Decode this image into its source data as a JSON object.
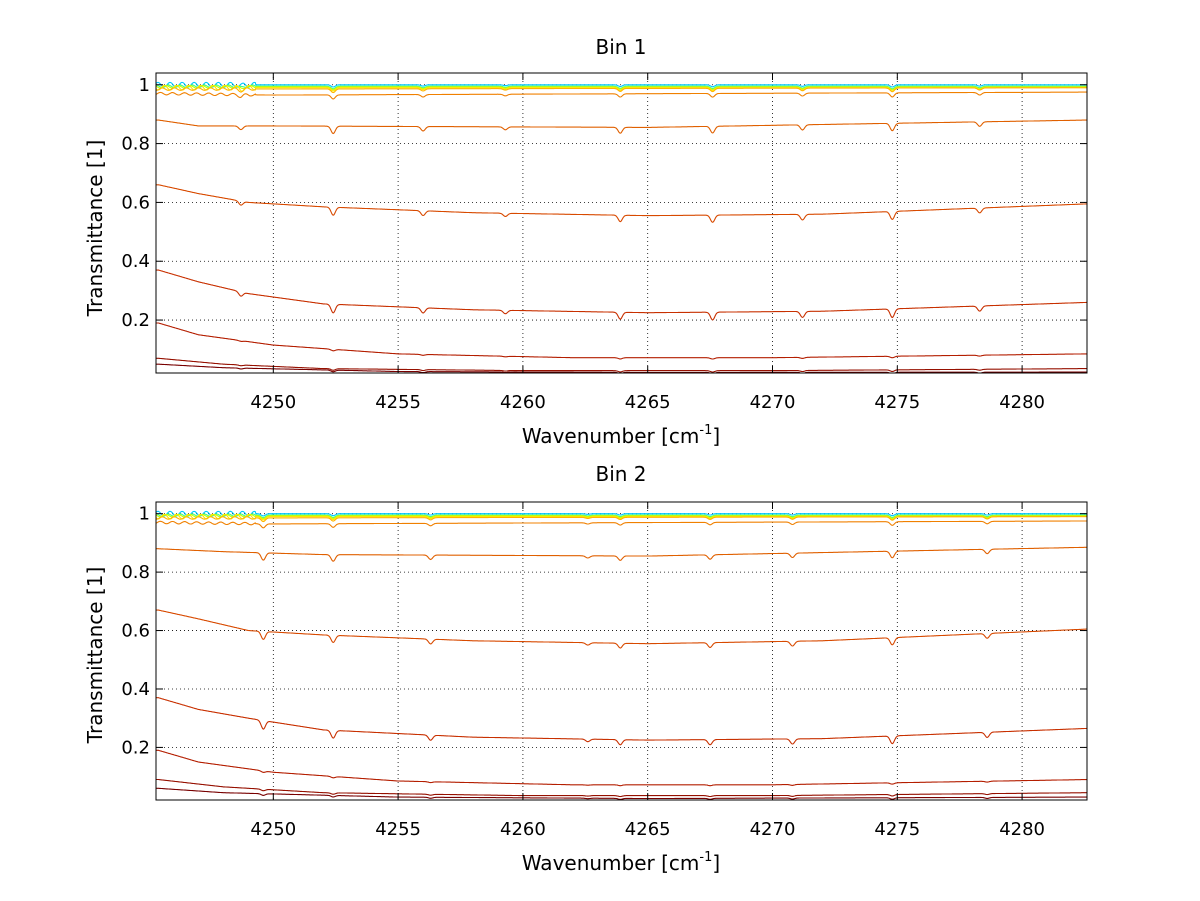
{
  "chart_data": [
    {
      "type": "line",
      "title": "Bin 1",
      "xlabel": "Wavenumber [cm",
      "xlabel_sup": "-1",
      "xlabel_close": "]",
      "ylabel": "Transmittance [1]",
      "xlim": [
        4245.3,
        4282.6
      ],
      "ylim": [
        0.02,
        1.04
      ],
      "grid": true,
      "grid_style": "dotted",
      "xticks": [
        4250,
        4255,
        4260,
        4265,
        4270,
        4275,
        4280
      ],
      "xtick_labels": [
        "4250",
        "4255",
        "4260",
        "4265",
        "4270",
        "4275",
        "4280"
      ],
      "yticks": [
        0.2,
        0.4,
        0.6,
        0.8,
        1
      ],
      "ytick_labels": [
        "0.2",
        "0.4",
        "0.6",
        "0.8",
        "1"
      ],
      "series": [
        {
          "color": "#00c8ff",
          "values": [
            [
              4245.4,
              1.0
            ],
            [
              4248,
              1.0
            ],
            [
              4282.6,
              1.0
            ]
          ]
        },
        {
          "color": "#40ff80",
          "values": [
            [
              4245.4,
              0.995
            ],
            [
              4282.6,
              0.995
            ]
          ]
        },
        {
          "color": "#c8ff00",
          "values": [
            [
              4245.4,
              0.993
            ],
            [
              4282.6,
              0.993
            ]
          ]
        },
        {
          "color": "#ffe600",
          "values": [
            [
              4245.4,
              0.99
            ],
            [
              4282.6,
              0.99
            ]
          ]
        },
        {
          "color": "#ffb400",
          "values": [
            [
              4245.4,
              0.985
            ],
            [
              4282.6,
              0.99
            ]
          ]
        },
        {
          "color": "#f08000",
          "values": [
            [
              4245.4,
              0.97
            ],
            [
              4250,
              0.965
            ],
            [
              4282.6,
              0.975
            ]
          ]
        },
        {
          "color": "#e06000",
          "values": [
            [
              4245.4,
              0.88
            ],
            [
              4247,
              0.86
            ],
            [
              4250,
              0.86
            ],
            [
              4265,
              0.855
            ],
            [
              4282.6,
              0.88
            ]
          ]
        },
        {
          "color": "#d84a00",
          "values": [
            [
              4245.4,
              0.66
            ],
            [
              4247,
              0.63
            ],
            [
              4249,
              0.6
            ],
            [
              4252,
              0.585
            ],
            [
              4258,
              0.565
            ],
            [
              4265,
              0.555
            ],
            [
              4272,
              0.56
            ],
            [
              4282.6,
              0.595
            ]
          ]
        },
        {
          "color": "#c83000",
          "values": [
            [
              4245.4,
              0.37
            ],
            [
              4247,
              0.33
            ],
            [
              4249,
              0.29
            ],
            [
              4252,
              0.255
            ],
            [
              4258,
              0.235
            ],
            [
              4265,
              0.225
            ],
            [
              4272,
              0.23
            ],
            [
              4282.6,
              0.26
            ]
          ]
        },
        {
          "color": "#b41e00",
          "values": [
            [
              4245.4,
              0.19
            ],
            [
              4247,
              0.15
            ],
            [
              4250,
              0.115
            ],
            [
              4255,
              0.085
            ],
            [
              4262,
              0.072
            ],
            [
              4270,
              0.072
            ],
            [
              4282.6,
              0.085
            ]
          ]
        },
        {
          "color": "#961000",
          "values": [
            [
              4245.4,
              0.07
            ],
            [
              4248,
              0.05
            ],
            [
              4252,
              0.035
            ],
            [
              4260,
              0.028
            ],
            [
              4270,
              0.028
            ],
            [
              4282.6,
              0.035
            ]
          ]
        },
        {
          "color": "#780000",
          "values": [
            [
              4245.4,
              0.05
            ],
            [
              4248,
              0.038
            ],
            [
              4255,
              0.025
            ],
            [
              4265,
              0.022
            ],
            [
              4282.6,
              0.023
            ]
          ]
        }
      ],
      "absorption_lines": [
        4248.7,
        4252.4,
        4256.0,
        4259.3,
        4263.9,
        4267.6,
        4271.2,
        4274.8,
        4278.3
      ],
      "line_depths": [
        0.5,
        1.0,
        0.6,
        0.4,
        0.8,
        0.9,
        0.7,
        1.0,
        0.6
      ]
    },
    {
      "type": "line",
      "title": "Bin 2",
      "xlabel": "Wavenumber [cm",
      "xlabel_sup": "-1",
      "xlabel_close": "]",
      "ylabel": "Transmittance [1]",
      "xlim": [
        4245.3,
        4282.6
      ],
      "ylim": [
        0.02,
        1.04
      ],
      "grid": true,
      "grid_style": "dotted",
      "xticks": [
        4250,
        4255,
        4260,
        4265,
        4270,
        4275,
        4280
      ],
      "xtick_labels": [
        "4250",
        "4255",
        "4260",
        "4265",
        "4270",
        "4275",
        "4280"
      ],
      "yticks": [
        0.2,
        0.4,
        0.6,
        0.8,
        1
      ],
      "ytick_labels": [
        "0.2",
        "0.4",
        "0.6",
        "0.8",
        "1"
      ],
      "series": [
        {
          "color": "#00c8ff",
          "values": [
            [
              4245.4,
              1.0
            ],
            [
              4282.6,
              1.0
            ]
          ]
        },
        {
          "color": "#40ff80",
          "values": [
            [
              4245.4,
              0.995
            ],
            [
              4282.6,
              0.995
            ]
          ]
        },
        {
          "color": "#c8ff00",
          "values": [
            [
              4245.4,
              0.993
            ],
            [
              4282.6,
              0.993
            ]
          ]
        },
        {
          "color": "#ffe600",
          "values": [
            [
              4245.4,
              0.99
            ],
            [
              4282.6,
              0.99
            ]
          ]
        },
        {
          "color": "#ffb400",
          "values": [
            [
              4245.4,
              0.985
            ],
            [
              4282.6,
              0.99
            ]
          ]
        },
        {
          "color": "#f08000",
          "values": [
            [
              4245.4,
              0.97
            ],
            [
              4250,
              0.965
            ],
            [
              4282.6,
              0.975
            ]
          ]
        },
        {
          "color": "#e06000",
          "values": [
            [
              4245.4,
              0.88
            ],
            [
              4248,
              0.87
            ],
            [
              4252,
              0.86
            ],
            [
              4265,
              0.855
            ],
            [
              4282.6,
              0.885
            ]
          ]
        },
        {
          "color": "#d84a00",
          "values": [
            [
              4245.4,
              0.67
            ],
            [
              4247,
              0.64
            ],
            [
              4249,
              0.6
            ],
            [
              4252,
              0.585
            ],
            [
              4258,
              0.565
            ],
            [
              4265,
              0.555
            ],
            [
              4272,
              0.565
            ],
            [
              4282.6,
              0.605
            ]
          ]
        },
        {
          "color": "#c83000",
          "values": [
            [
              4245.4,
              0.37
            ],
            [
              4247,
              0.33
            ],
            [
              4249,
              0.3
            ],
            [
              4252,
              0.26
            ],
            [
              4258,
              0.235
            ],
            [
              4265,
              0.225
            ],
            [
              4272,
              0.23
            ],
            [
              4282.6,
              0.265
            ]
          ]
        },
        {
          "color": "#b41e00",
          "values": [
            [
              4245.4,
              0.19
            ],
            [
              4247,
              0.15
            ],
            [
              4250,
              0.115
            ],
            [
              4255,
              0.085
            ],
            [
              4262,
              0.072
            ],
            [
              4270,
              0.072
            ],
            [
              4282.6,
              0.09
            ]
          ]
        },
        {
          "color": "#961000",
          "values": [
            [
              4245.4,
              0.09
            ],
            [
              4248,
              0.065
            ],
            [
              4252,
              0.045
            ],
            [
              4260,
              0.035
            ],
            [
              4270,
              0.035
            ],
            [
              4282.6,
              0.045
            ]
          ]
        },
        {
          "color": "#780000",
          "values": [
            [
              4245.4,
              0.06
            ],
            [
              4248,
              0.045
            ],
            [
              4255,
              0.03
            ],
            [
              4265,
              0.025
            ],
            [
              4282.6,
              0.03
            ]
          ]
        }
      ],
      "absorption_lines": [
        4249.6,
        4252.4,
        4256.3,
        4262.6,
        4263.9,
        4267.5,
        4270.8,
        4274.8,
        4278.6
      ],
      "line_depths": [
        1.0,
        0.9,
        0.6,
        0.3,
        0.6,
        0.6,
        0.6,
        0.9,
        0.6
      ]
    }
  ]
}
